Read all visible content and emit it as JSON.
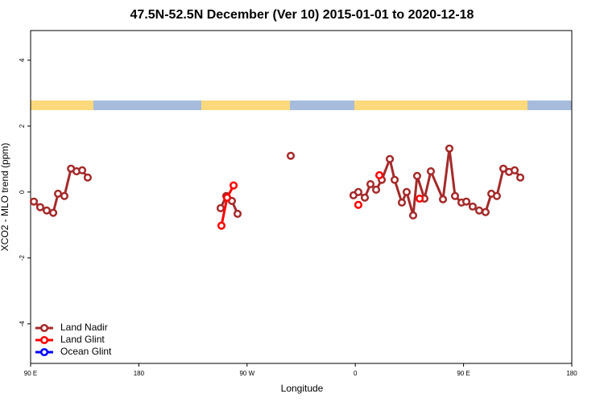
{
  "chart_data": {
    "type": "line",
    "title": "47.5N-52.5N December (Ver 10)   2015-01-01 to 2020-12-18",
    "x_label": "Longitude",
    "y_label": "XCO2 - MLO trend (ppm)",
    "xlim": [
      90,
      540
    ],
    "ylim": [
      -5.2,
      4.9
    ],
    "xticks": [
      {
        "value": 90,
        "label": "90 E"
      },
      180,
      {
        "value": 270,
        "label": "90 W"
      },
      {
        "value": 360,
        "label": "0"
      },
      {
        "value": 450,
        "label": "90 E"
      },
      {
        "value": 540,
        "label": "180"
      }
    ],
    "yticks": [
      -4,
      -2,
      0,
      2,
      4
    ],
    "legend": "bottom-left",
    "series": [
      {
        "name": "Land Nadir",
        "color": "#a52a2a",
        "x": [
          92.7,
          98.0,
          103.4,
          108.8,
          112.8,
          118.1,
          123.6,
          128.2,
          132.9,
          137.5,
          null,
          248.0,
          252.7,
          257.4,
          262.1,
          null,
          306.3,
          null,
          358.5,
          362.5,
          367.9,
          372.6,
          377.3,
          382.0,
          388.7,
          392.7,
          398.7,
          402.7,
          408.1,
          411.4,
          417.5,
          422.8,
          432.9,
          438.2,
          442.9,
          448.3,
          452.3,
          457.6,
          463.0,
          468.3,
          473.1,
          477.7,
          483.1,
          487.8,
          492.5,
          497.2
        ],
        "values": [
          -0.29,
          -0.46,
          -0.56,
          -0.63,
          -0.05,
          -0.12,
          0.71,
          0.63,
          0.66,
          0.44,
          null,
          -0.49,
          -0.12,
          -0.27,
          -0.66,
          null,
          1.1,
          null,
          -0.1,
          0,
          -0.17,
          0.24,
          0.07,
          0.37,
          1.0,
          0.37,
          -0.32,
          0,
          -0.71,
          0.49,
          -0.2,
          0.63,
          -0.22,
          1.32,
          -0.12,
          -0.32,
          -0.29,
          -0.44,
          -0.56,
          -0.61,
          -0.05,
          -0.12,
          0.71,
          0.61,
          0.66,
          0.44
        ]
      },
      {
        "name": "Land Glint",
        "color": "#ff0000",
        "x": [
          248.7,
          253.4,
          258.8,
          null,
          362.5,
          null,
          380.0,
          null,
          413.5
        ],
        "values": [
          -1.02,
          -0.17,
          0.2,
          null,
          -0.39,
          null,
          0.51,
          null,
          -0.2
        ]
      },
      {
        "name": "Ocean Glint",
        "color": "#0000ff",
        "x": [],
        "values": []
      }
    ]
  }
}
